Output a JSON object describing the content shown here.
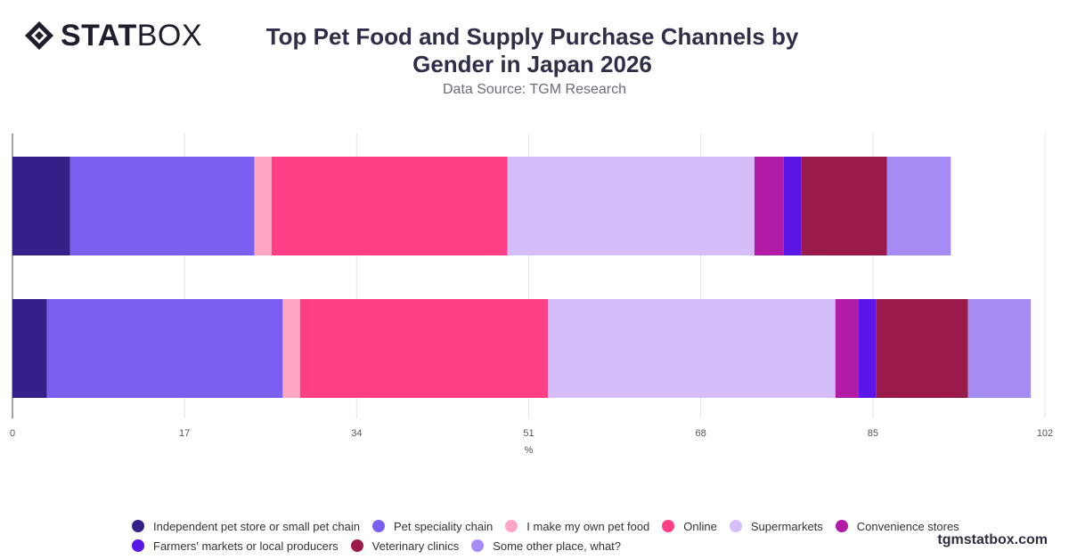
{
  "brand": {
    "logo_bold": "STAT",
    "logo_light": "BOX",
    "watermark": "tgmstatbox.com"
  },
  "header": {
    "title_line1": "Top Pet Food and Supply Purchase Channels by",
    "title_line2": "Gender in Japan 2026",
    "subtitle": "Data Source: TGM Research"
  },
  "chart_data": {
    "type": "bar",
    "orientation": "horizontal",
    "stacked": true,
    "categories": [
      "",
      ""
    ],
    "xlabel": "%",
    "xlim": [
      0,
      102
    ],
    "xticks": [
      0,
      17,
      34,
      51,
      68,
      85,
      102
    ],
    "grid": true,
    "legend_position": "bottom",
    "series": [
      {
        "name": "Independent pet store or small pet chain",
        "color": "#35208a",
        "values": [
          5.7,
          3.4
        ]
      },
      {
        "name": "Pet speciality chain",
        "color": "#7b5ff0",
        "values": [
          18.2,
          23.3
        ]
      },
      {
        "name": "I make my own pet food",
        "color": "#ffa6c3",
        "values": [
          1.7,
          1.7
        ]
      },
      {
        "name": "Online",
        "color": "#ff3f85",
        "values": [
          23.3,
          24.5
        ]
      },
      {
        "name": "Supermarkets",
        "color": "#d5bdfa",
        "values": [
          24.4,
          28.4
        ]
      },
      {
        "name": "Convenience stores",
        "color": "#b11ba5",
        "values": [
          2.9,
          2.3
        ]
      },
      {
        "name": "Farmers' markets or local producers",
        "color": "#5b17e8",
        "values": [
          1.7,
          1.7
        ]
      },
      {
        "name": "Veterinary clinics",
        "color": "#9a1a4c",
        "values": [
          8.5,
          9.1
        ]
      },
      {
        "name": "Some other place, what?",
        "color": "#a58cf5",
        "values": [
          6.3,
          6.2
        ]
      }
    ]
  }
}
